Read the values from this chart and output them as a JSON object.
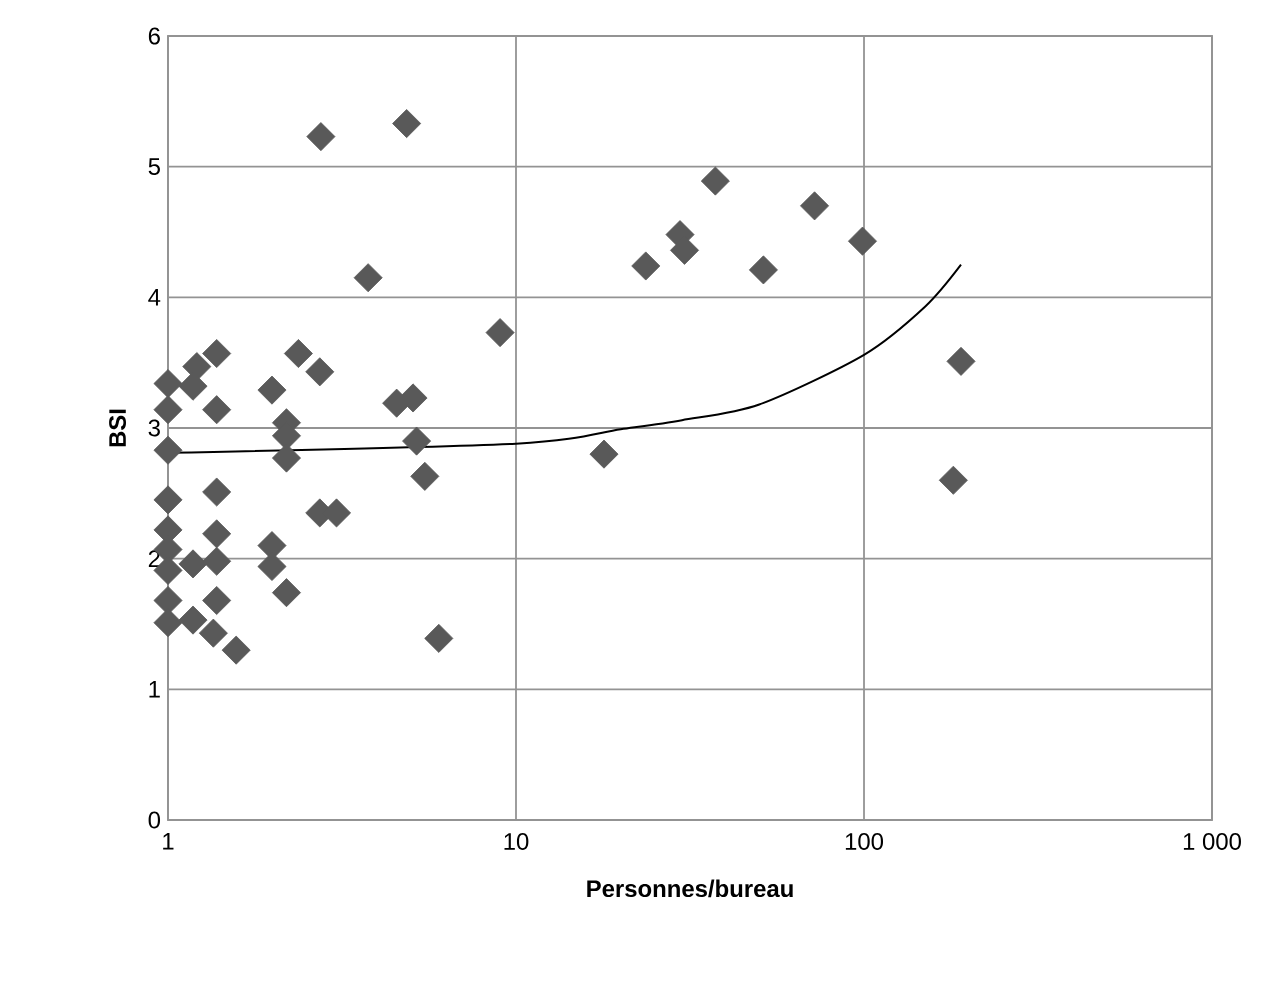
{
  "chart_data": {
    "type": "scatter",
    "xlabel": "Personnes/bureau",
    "ylabel": "BSI",
    "log": "x",
    "grid": true,
    "marker": "diamond",
    "xlim": [
      1,
      1000
    ],
    "xticks": [
      1,
      10,
      100,
      {
        "value": 1000,
        "label": "1 000"
      }
    ],
    "ylim": [
      0,
      6
    ],
    "yticks": [
      0,
      1,
      2,
      3,
      4,
      5,
      6
    ],
    "series": [
      {
        "color": "#595959",
        "x": [
          4.85,
          37.4,
          72.1,
          29.6,
          30.5,
          99,
          23.6,
          51.4,
          9.0,
          190,
          180.6,
          17.9,
          6.0,
          4.54,
          5.06,
          5.18,
          5.47,
          2.75,
          3.76,
          1.38,
          2.37,
          2.73,
          1.21,
          1.0,
          1.18,
          1.99,
          1.0,
          1.38,
          2.19,
          2.19,
          1.0,
          2.19,
          1.0,
          1.38,
          2.73,
          3.05,
          1.0,
          1.38,
          1.99,
          1.0,
          1.99,
          1.0,
          1.18,
          1.38,
          2.19,
          1.0,
          1.38,
          1.0,
          1.18,
          1.35,
          1.57
        ],
        "values": [
          5.33,
          4.89,
          4.7,
          4.48,
          4.36,
          4.43,
          4.24,
          4.21,
          3.73,
          3.51,
          2.6,
          2.8,
          1.39,
          3.19,
          3.23,
          2.9,
          2.63,
          5.23,
          4.15,
          3.57,
          3.57,
          3.43,
          3.47,
          3.34,
          3.32,
          3.29,
          3.14,
          3.14,
          3.04,
          2.94,
          2.83,
          2.77,
          2.45,
          2.51,
          2.35,
          2.35,
          2.22,
          2.19,
          2.1,
          2.07,
          1.94,
          1.91,
          1.96,
          1.98,
          1.74,
          1.68,
          1.68,
          1.51,
          1.53,
          1.43,
          1.3
        ]
      },
      {
        "type": "line",
        "color": "#000000",
        "marker": "none",
        "x": [
          1,
          10,
          20,
          30,
          50,
          100,
          150,
          190
        ],
        "values": [
          2.81,
          2.88,
          2.99,
          3.06,
          3.18,
          3.56,
          3.93,
          4.25
        ]
      }
    ]
  }
}
